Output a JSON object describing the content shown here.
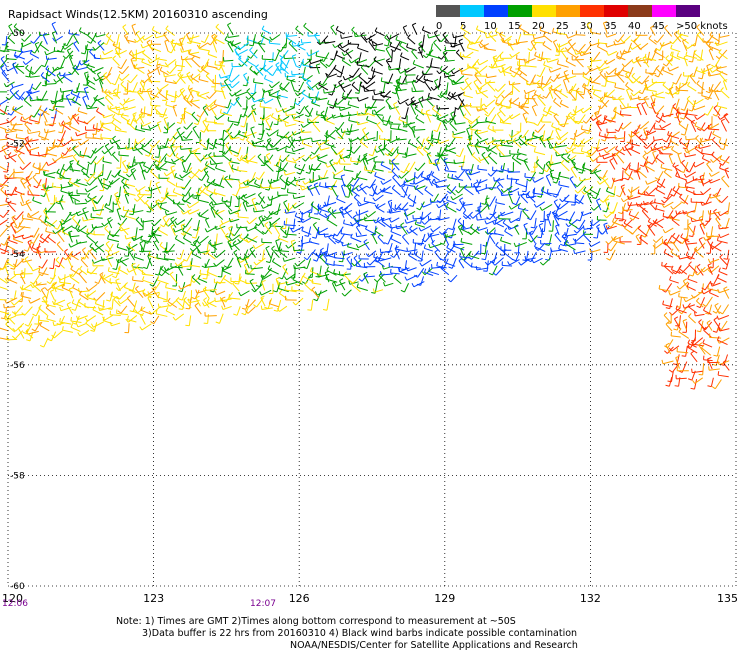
{
  "title": "Rapidsact Winds(12.5KM) 20160310 ascending",
  "legend": {
    "ticks": [
      "0",
      "5",
      "10",
      "15",
      "20",
      "25",
      "30",
      "35",
      "40",
      "45",
      ">50 knots"
    ],
    "colors": [
      "#555555",
      "#00c8ff",
      "#0040ff",
      "#00a000",
      "#ffe000",
      "#ffa000",
      "#ff3000",
      "#e00000",
      "#8b3a1a",
      "#ff00ff",
      "#5a0080"
    ]
  },
  "map": {
    "lat_labels": [
      "-50",
      "-52",
      "-54",
      "-56",
      "-58",
      "-60"
    ],
    "lon_labels": [
      "120",
      "123",
      "126",
      "129",
      "132",
      "135"
    ],
    "time_labels": [
      "12:06",
      "12:07"
    ]
  },
  "notes": [
    "Note: 1) Times are GMT 2)Times along bottom correspond to measurement at ~50S",
    "3)Data buffer is 22 hrs from 20160310 4) Black wind barbs indicate possible contamination",
    "NOAA/NESDIS/Center for Satellite Applications and Research"
  ]
}
